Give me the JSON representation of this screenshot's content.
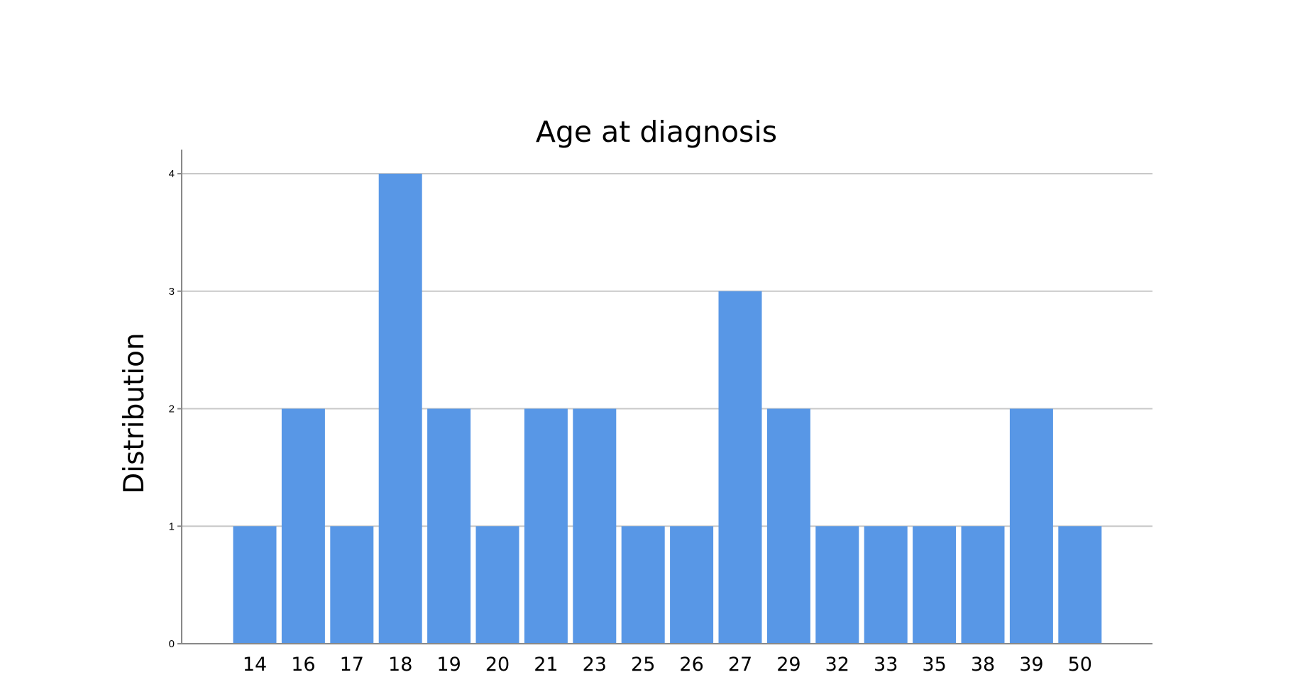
{
  "chart_data": {
    "type": "bar",
    "title": "Age at diagnosis",
    "xlabel": "",
    "ylabel": "Distribution",
    "categories": [
      "14",
      "16",
      "17",
      "18",
      "19",
      "20",
      "21",
      "23",
      "25",
      "26",
      "27",
      "29",
      "32",
      "33",
      "35",
      "38",
      "39",
      "50"
    ],
    "values": [
      1,
      2,
      1,
      4,
      2,
      1,
      2,
      2,
      1,
      1,
      3,
      2,
      1,
      1,
      1,
      1,
      2,
      1
    ],
    "ylim": [
      0,
      4
    ],
    "yticks": [
      "0",
      "1",
      "2",
      "3",
      "4"
    ],
    "grid": true,
    "legend": "none",
    "bar_color": "#5897e6"
  }
}
